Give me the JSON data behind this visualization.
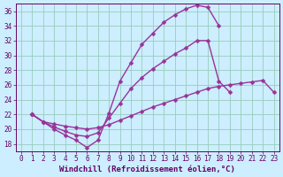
{
  "xlabel": "Windchill (Refroidissement éolien,°C)",
  "bg_color": "#cceeff",
  "grid_color": "#99ccbb",
  "line_color": "#993399",
  "marker": "D",
  "marker_size": 2.5,
  "line_width": 1.0,
  "xlim": [
    -0.5,
    23.5
  ],
  "ylim": [
    17,
    37
  ],
  "xticks": [
    0,
    1,
    2,
    3,
    4,
    5,
    6,
    7,
    8,
    9,
    10,
    11,
    12,
    13,
    14,
    15,
    16,
    17,
    18,
    19,
    20,
    21,
    22,
    23
  ],
  "yticks": [
    18,
    20,
    22,
    24,
    26,
    28,
    30,
    32,
    34,
    36
  ],
  "line1_x": [
    1,
    2,
    3,
    4,
    5,
    6,
    7,
    8,
    9,
    10,
    11,
    12,
    13,
    14,
    15,
    16,
    17,
    18
  ],
  "line1_y": [
    22.0,
    21.0,
    20.0,
    19.2,
    18.5,
    17.5,
    18.5,
    22.2,
    26.5,
    29.0,
    31.5,
    33.0,
    34.5,
    35.5,
    36.3,
    36.8,
    36.5,
    34.0
  ],
  "line2_x": [
    1,
    2,
    3,
    4,
    5,
    6,
    7,
    8,
    9,
    10,
    11,
    12,
    13,
    14,
    15,
    16,
    17,
    18,
    19,
    20,
    21,
    22,
    23
  ],
  "line2_y": [
    22.0,
    21.0,
    20.3,
    19.7,
    19.2,
    19.0,
    19.5,
    21.5,
    23.5,
    25.5,
    27.0,
    28.2,
    29.2,
    30.2,
    31.0,
    32.0,
    32.0,
    26.5,
    25.0,
    null,
    null,
    null,
    null
  ],
  "line3_x": [
    1,
    2,
    3,
    4,
    5,
    6,
    7,
    8,
    9,
    10,
    11,
    12,
    13,
    14,
    15,
    16,
    17,
    18,
    19,
    20,
    21,
    22,
    23
  ],
  "line3_y": [
    22.0,
    21.0,
    20.7,
    20.4,
    20.2,
    20.0,
    20.2,
    20.6,
    21.2,
    21.8,
    22.4,
    23.0,
    23.5,
    24.0,
    24.5,
    25.0,
    25.5,
    25.8,
    26.0,
    26.2,
    26.4,
    26.6,
    25.0
  ],
  "font_color": "#660066",
  "tick_fontsize": 5.5,
  "label_fontsize": 6.5
}
